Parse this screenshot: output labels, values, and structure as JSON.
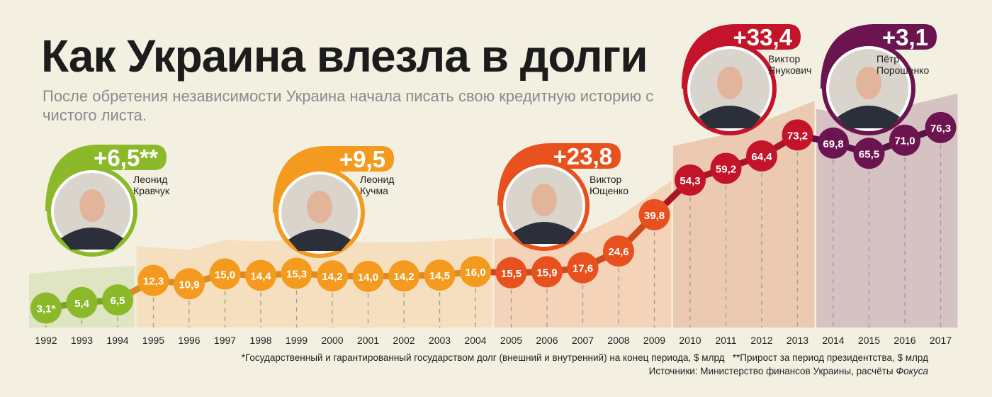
{
  "title": "Как Украина влезла в долги",
  "subtitle": "После обретения независимости Украина начала писать свою кредитную историю с чистого листа.",
  "footnotes": {
    "debt_note": "*Государственный и гарантированный государством долг (внешний и внутренний) на конец периода, $ млрд",
    "growth_note": "**Прирост за период президентства, $ млрд",
    "sources_prefix": "Источники: Министерство финансов Украины, расчёты ",
    "sources_italic": "Фокуса"
  },
  "chart_data": {
    "type": "line",
    "title": "Как Украина влезла в долги",
    "xlabel": "",
    "ylabel": "",
    "unit": "$ млрд",
    "grid": false,
    "years": [
      "1992",
      "1993",
      "1994",
      "1995",
      "1996",
      "1997",
      "1998",
      "1999",
      "2000",
      "2001",
      "2002",
      "2003",
      "2004",
      "2005",
      "2006",
      "2007",
      "2008",
      "2009",
      "2010",
      "2011",
      "2012",
      "2013",
      "2014",
      "2015",
      "2016",
      "2017"
    ],
    "values": [
      3.1,
      5.4,
      6.5,
      12.3,
      10.9,
      15.0,
      14.4,
      15.3,
      14.2,
      14.0,
      14.2,
      14.5,
      16.0,
      15.5,
      15.9,
      17.6,
      24.6,
      39.8,
      54.3,
      59.2,
      64.4,
      73.2,
      69.8,
      65.5,
      71.0,
      76.3
    ],
    "labels": [
      "3,1*",
      "5,4",
      "6,5",
      "12,3",
      "10,9",
      "15,0",
      "14,4",
      "15,3",
      "14,2",
      "14,0",
      "14,2",
      "14,5",
      "16,0",
      "15,5",
      "15,9",
      "17,6",
      "24,6",
      "39,8",
      "54,3",
      "59,2",
      "64,4",
      "73,2",
      "69,8",
      "65,5",
      "71,0",
      "76,3"
    ],
    "periods": [
      {
        "name_first": "Леонид",
        "name_last": "Кравчук",
        "growth": "+6,5**",
        "start": 0,
        "end": 2,
        "color": "#8cb92a",
        "line": "#7ba324",
        "area": "#dfe4c3"
      },
      {
        "name_first": "Леонид",
        "name_last": "Кучма",
        "growth": "+9,5",
        "start": 3,
        "end": 12,
        "color": "#f39a1f",
        "line": "#de8a1e",
        "area": "#f5dfbf"
      },
      {
        "name_first": "Виктор",
        "name_last": "Ющенко",
        "growth": "+23,8",
        "start": 13,
        "end": 17,
        "color": "#e8501e",
        "line": "#cc4a1c",
        "area": "#f4d3b8"
      },
      {
        "name_first": "Виктор",
        "name_last": "Янукович",
        "growth": "+33,4",
        "start": 18,
        "end": 21,
        "color": "#c4142a",
        "line": "#a81524",
        "area": "#eccab2"
      },
      {
        "name_first": "Пётр",
        "name_last": "Порошенко",
        "growth": "+3,1",
        "start": 22,
        "end": 25,
        "color": "#6b1450",
        "line": "#5a1145",
        "area": "#d6c2c2"
      }
    ]
  }
}
